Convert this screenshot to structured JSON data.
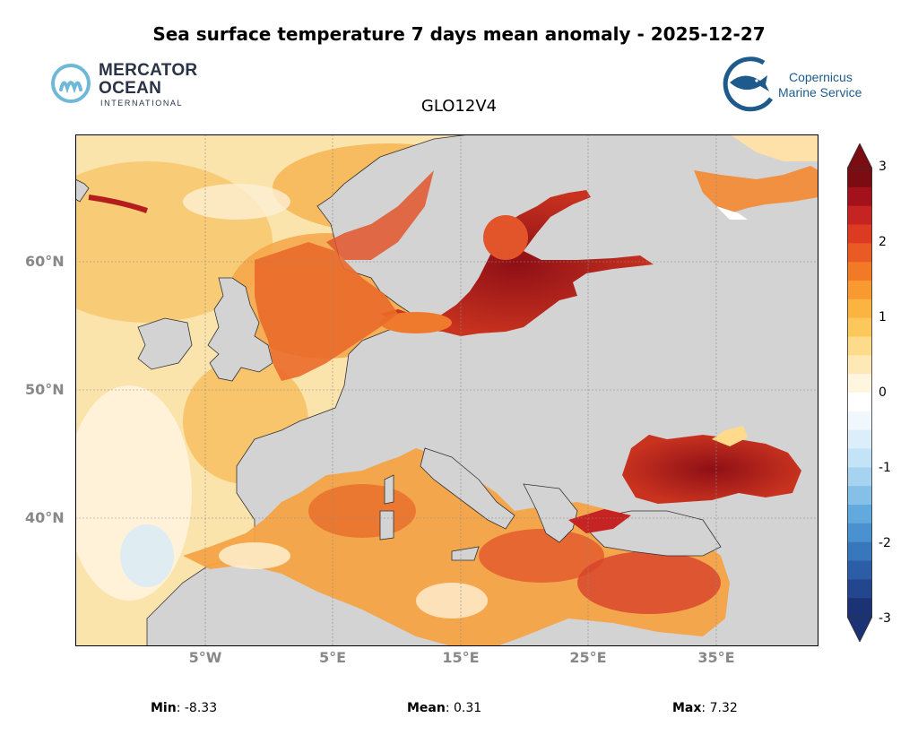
{
  "title": "Sea surface temperature 7 days mean anomaly - 2025-12-27",
  "subtitle": "GLO12V4",
  "logos": {
    "left": {
      "line1": "MERCATOR",
      "line2": "OCEAN",
      "line3": "INTERNATIONAL"
    },
    "right": {
      "line1": "Copernicus",
      "line2": "Marine Service"
    }
  },
  "axes": {
    "lat_labels": [
      "60°N",
      "50°N",
      "40°N"
    ],
    "lon_labels": [
      "5°W",
      "5°E",
      "15°E",
      "25°E",
      "35°E"
    ]
  },
  "colorbar": {
    "min": -3,
    "max": 3,
    "labels": [
      "3",
      "2",
      "1",
      "0",
      "-1",
      "-2",
      "-3"
    ],
    "colors": [
      "#7a0c12",
      "#a3121a",
      "#c62323",
      "#dd3a22",
      "#ea5a24",
      "#f27a26",
      "#f89a31",
      "#fab43f",
      "#fcc85c",
      "#fddb8a",
      "#fee9b6",
      "#fff6e0",
      "#ffffff",
      "#f0f8fd",
      "#dbeefa",
      "#c3e3f6",
      "#a6d4f0",
      "#84c0e8",
      "#62a9dd",
      "#4a91cf",
      "#3877bc",
      "#2b5ea6",
      "#22478e",
      "#1b3374"
    ]
  },
  "stats": {
    "min_label": "Min",
    "min_value": "-8.33",
    "mean_label": "Mean",
    "mean_value": "0.31",
    "max_label": "Max",
    "max_value": "7.32"
  },
  "colors": {
    "land": "#d3d3d3",
    "gridline": "#8a8a8a"
  }
}
